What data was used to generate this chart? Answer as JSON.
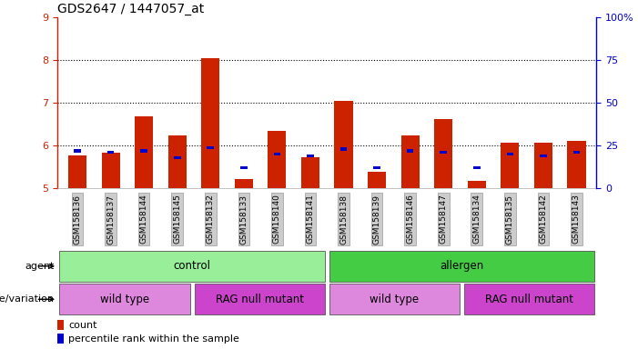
{
  "title": "GDS2647 / 1447057_at",
  "samples": [
    "GSM158136",
    "GSM158137",
    "GSM158144",
    "GSM158145",
    "GSM158132",
    "GSM158133",
    "GSM158140",
    "GSM158141",
    "GSM158138",
    "GSM158139",
    "GSM158146",
    "GSM158147",
    "GSM158134",
    "GSM158135",
    "GSM158142",
    "GSM158143"
  ],
  "red_values": [
    5.78,
    5.84,
    6.68,
    6.25,
    8.05,
    5.22,
    6.35,
    5.72,
    7.05,
    5.38,
    6.25,
    6.62,
    5.18,
    6.08,
    6.08,
    6.12
  ],
  "blue_percentiles": [
    22,
    21,
    22,
    18,
    24,
    12,
    20,
    19,
    23,
    12,
    22,
    21,
    12,
    20,
    19,
    21
  ],
  "ylim_left": [
    5,
    9
  ],
  "ylim_right": [
    0,
    100
  ],
  "yticks_left": [
    5,
    6,
    7,
    8,
    9
  ],
  "yticks_right": [
    0,
    25,
    50,
    75,
    100
  ],
  "ytick_right_labels": [
    "0",
    "25",
    "50",
    "75",
    "100%"
  ],
  "left_color": "#cc2200",
  "right_color": "#0000cc",
  "bar_width": 0.55,
  "bar_bottom": 5.0,
  "agent_control_color": "#99ee99",
  "agent_allergen_color": "#44cc44",
  "geno_wt_color": "#dd88dd",
  "geno_rag_color": "#cc44cc",
  "bg_color": "#ffffff",
  "legend_items": [
    "count",
    "percentile rank within the sample"
  ],
  "legend_colors": [
    "#cc2200",
    "#0000cc"
  ]
}
